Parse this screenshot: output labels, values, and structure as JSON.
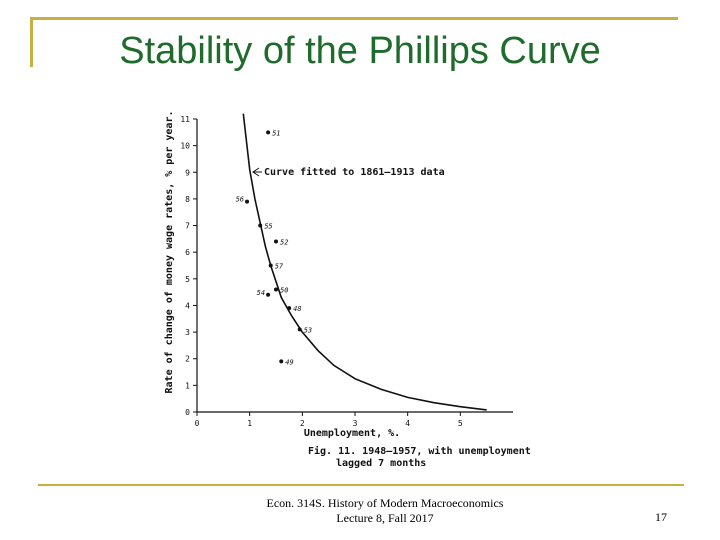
{
  "slide": {
    "title": "Stability of the Phillips Curve",
    "footer_line1": "Econ. 314S. History of Modern Macroeconomics",
    "footer_line2": "Lecture 8, Fall 2017",
    "page_number": "17",
    "accent_color": "#c8b040",
    "title_color": "#1e6b2c"
  },
  "chart_data": {
    "type": "scatter",
    "xlabel": "Unemployment, %.",
    "ylabel": "Rate of change of money wage rates, % per year.",
    "xlim": [
      0,
      6
    ],
    "ylim": [
      0,
      11
    ],
    "x_ticks": [
      0,
      1,
      2,
      3,
      4,
      5
    ],
    "y_ticks": [
      0,
      1,
      2,
      3,
      4,
      5,
      6,
      7,
      8,
      9,
      10,
      11
    ],
    "grid": false,
    "caption_line1": "Fig. 11.  1948—1957, with unemployment",
    "caption_line2": "lagged  7 months",
    "curve_annotation": "Curve fitted to 1861—1913 data",
    "curve": {
      "x": [
        0.88,
        1.0,
        1.1,
        1.2,
        1.3,
        1.4,
        1.5,
        1.6,
        1.8,
        2.0,
        2.3,
        2.6,
        3.0,
        3.5,
        4.0,
        4.5,
        5.0,
        5.5
      ],
      "y": [
        11.2,
        9.1,
        8.0,
        7.1,
        6.2,
        5.5,
        4.9,
        4.3,
        3.6,
        3.0,
        2.3,
        1.75,
        1.25,
        0.85,
        0.55,
        0.35,
        0.2,
        0.08
      ]
    },
    "points": [
      {
        "label": "51",
        "x": 1.35,
        "y": 10.5
      },
      {
        "label": "56",
        "x": 0.95,
        "y": 7.9
      },
      {
        "label": "55",
        "x": 1.2,
        "y": 7.0
      },
      {
        "label": "52",
        "x": 1.5,
        "y": 6.4
      },
      {
        "label": "57",
        "x": 1.4,
        "y": 5.5
      },
      {
        "label": "50",
        "x": 1.5,
        "y": 4.6
      },
      {
        "label": "54",
        "x": 1.35,
        "y": 4.4
      },
      {
        "label": "48",
        "x": 1.75,
        "y": 3.9
      },
      {
        "label": "53",
        "x": 1.95,
        "y": 3.1
      },
      {
        "label": "49",
        "x": 1.6,
        "y": 1.9
      }
    ]
  }
}
